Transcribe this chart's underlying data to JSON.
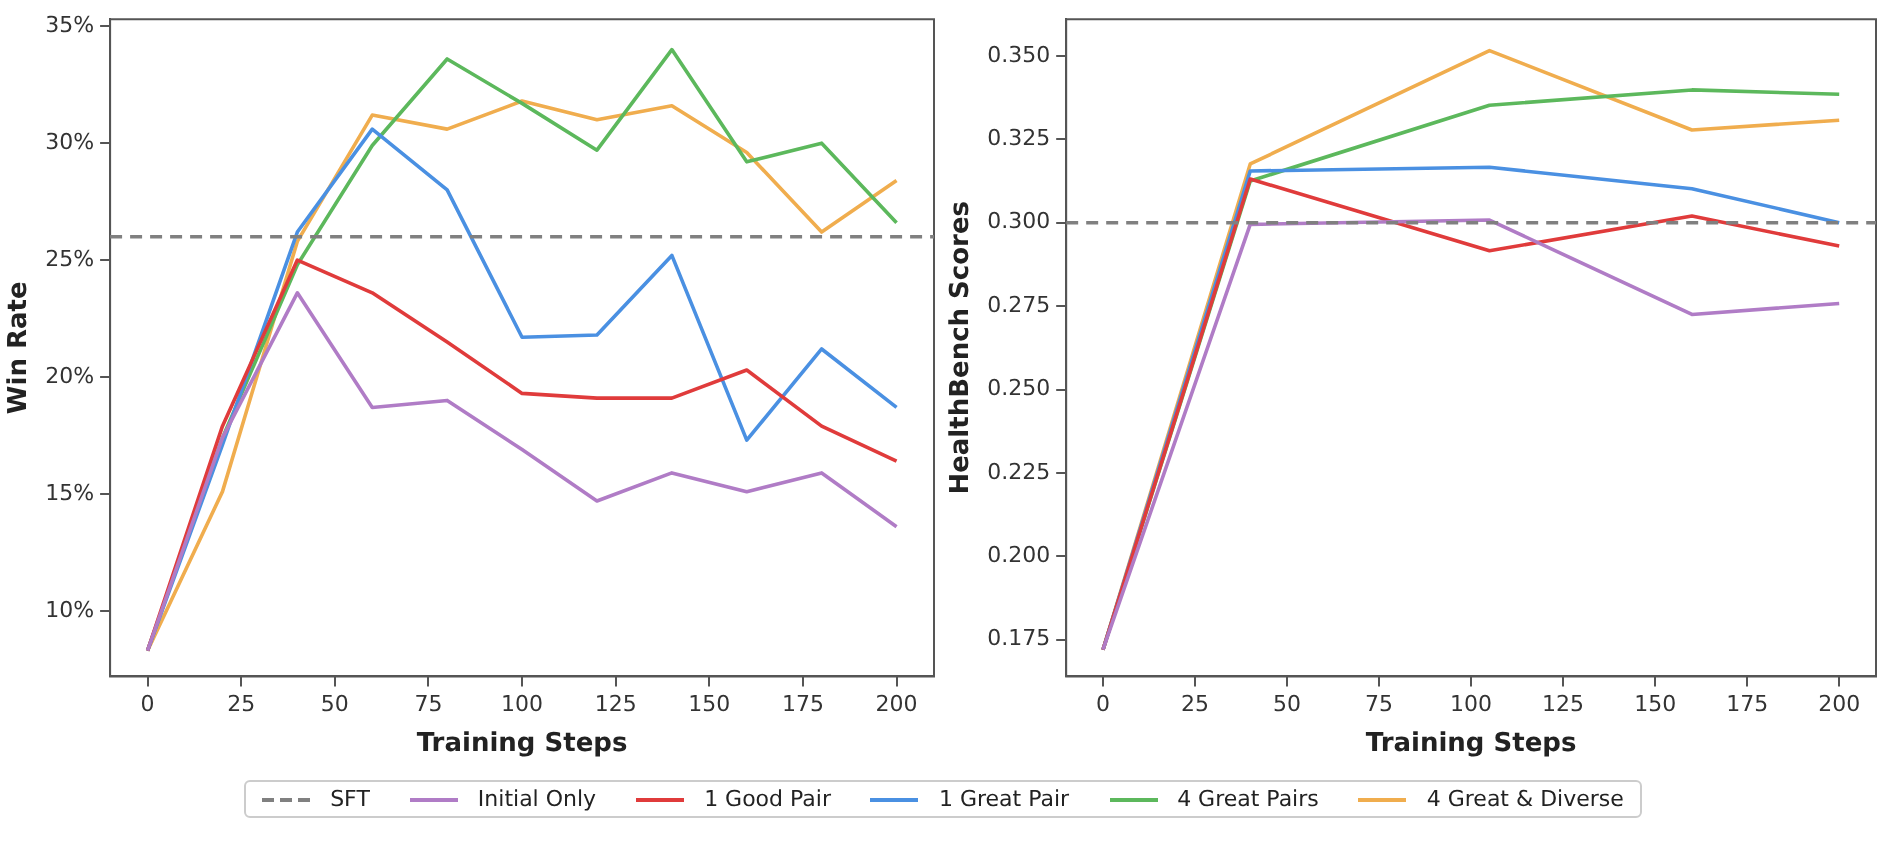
{
  "chart_data": [
    {
      "type": "line",
      "xlabel": "Training Steps",
      "ylabel": "Win Rate",
      "x": [
        0,
        20,
        40,
        60,
        80,
        100,
        120,
        140,
        160,
        180,
        200
      ],
      "xlim": [
        -10,
        210
      ],
      "xticks": [
        0,
        25,
        50,
        75,
        100,
        125,
        150,
        175,
        200
      ],
      "ylim": [
        7.2,
        35.3
      ],
      "yticks": [
        {
          "value": 10,
          "label": "10%"
        },
        {
          "value": 15,
          "label": "15%"
        },
        {
          "value": 20,
          "label": "20%"
        },
        {
          "value": 25,
          "label": "25%"
        },
        {
          "value": 30,
          "label": "30%"
        },
        {
          "value": 35,
          "label": "35%"
        }
      ],
      "grid": false,
      "legend": "bottom",
      "marker": "none",
      "line_style": "solid",
      "ref_lines": [
        {
          "axis": "y",
          "value": 26.0,
          "label": "SFT",
          "color": "#808080",
          "line_style": "dashed"
        }
      ],
      "series": [
        {
          "name": "Initial Only",
          "color": "#b07cc6",
          "values": [
            8.3,
            17.4,
            23.6,
            18.7,
            19.0,
            16.9,
            14.7,
            15.9,
            15.1,
            15.9,
            13.6
          ]
        },
        {
          "name": "1 Good Pair",
          "color": "#e03b3b",
          "values": [
            8.3,
            17.9,
            25.0,
            23.6,
            21.5,
            19.3,
            19.1,
            19.1,
            20.3,
            17.9,
            16.4
          ]
        },
        {
          "name": "1 Great Pair",
          "color": "#4a90e2",
          "values": [
            8.3,
            17.1,
            26.2,
            30.6,
            28.0,
            21.7,
            21.8,
            25.2,
            17.3,
            21.2,
            18.7
          ]
        },
        {
          "name": "4 Great Pairs",
          "color": "#5cb85c",
          "values": [
            8.3,
            17.4,
            24.8,
            29.9,
            33.6,
            31.7,
            29.7,
            34.0,
            29.2,
            30.0,
            26.6
          ]
        },
        {
          "name": "4 Great & Diverse",
          "color": "#f0ad4e",
          "values": [
            8.3,
            15.1,
            25.8,
            31.2,
            30.6,
            31.8,
            31.0,
            31.6,
            29.6,
            26.2,
            28.4
          ]
        }
      ]
    },
    {
      "type": "line",
      "xlabel": "Training Steps",
      "ylabel": "HealthBench Scores",
      "x": [
        0,
        40,
        105,
        160,
        200
      ],
      "xlim": [
        -10,
        210
      ],
      "xticks": [
        0,
        25,
        50,
        75,
        100,
        125,
        150,
        175,
        200
      ],
      "ylim": [
        0.164,
        0.361
      ],
      "yticks": [
        {
          "value": 0.175,
          "label": "0.175"
        },
        {
          "value": 0.2,
          "label": "0.200"
        },
        {
          "value": 0.225,
          "label": "0.225"
        },
        {
          "value": 0.25,
          "label": "0.250"
        },
        {
          "value": 0.275,
          "label": "0.275"
        },
        {
          "value": 0.3,
          "label": "0.300"
        },
        {
          "value": 0.325,
          "label": "0.325"
        },
        {
          "value": 0.35,
          "label": "0.350"
        }
      ],
      "grid": false,
      "legend": "bottom",
      "marker": "none",
      "line_style": "solid",
      "ref_lines": [
        {
          "axis": "y",
          "value": 0.3,
          "color": "#808080",
          "line_style": "dashed"
        }
      ],
      "series": [
        {
          "name": "Initial Only",
          "color": "#b07cc6",
          "values": [
            0.172,
            0.2995,
            0.3008,
            0.2725,
            0.2758
          ]
        },
        {
          "name": "1 Good Pair",
          "color": "#e03b3b",
          "values": [
            0.172,
            0.3131,
            0.2916,
            0.302,
            0.293
          ]
        },
        {
          "name": "1 Great Pair",
          "color": "#4a90e2",
          "values": [
            0.172,
            0.3155,
            0.3166,
            0.3102,
            0.3
          ]
        },
        {
          "name": "4 Great Pairs",
          "color": "#5cb85c",
          "values": [
            0.172,
            0.3125,
            0.3352,
            0.3398,
            0.3385
          ]
        },
        {
          "name": "4 Great & Diverse",
          "color": "#f0ad4e",
          "values": [
            0.172,
            0.3176,
            0.3516,
            0.3278,
            0.3307
          ]
        }
      ]
    }
  ]
}
